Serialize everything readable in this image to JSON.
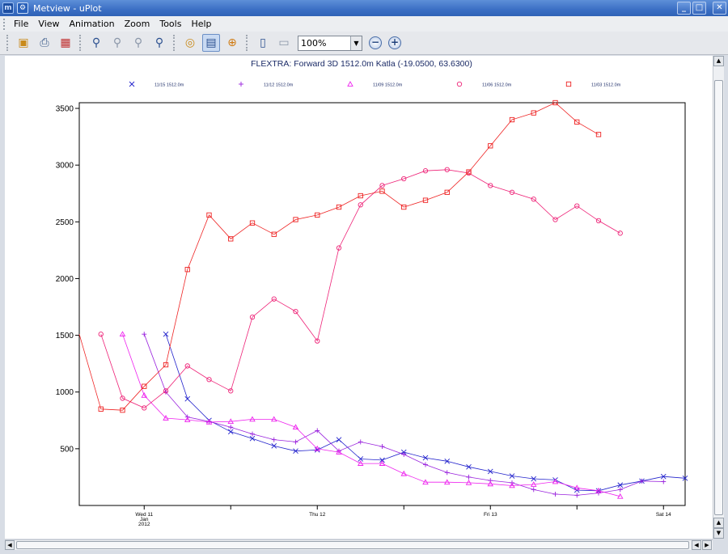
{
  "window": {
    "title": "Metview - uPlot",
    "app_icon": "metview-app-icon",
    "system_icon": "gear-icon"
  },
  "menu": {
    "items": [
      "File",
      "View",
      "Animation",
      "Zoom",
      "Tools",
      "Help"
    ]
  },
  "toolbar": {
    "buttons": [
      {
        "name": "save-icon",
        "glyph": "💾"
      },
      {
        "name": "print-icon",
        "glyph": "🖶"
      },
      {
        "name": "export-icon",
        "glyph": "▦"
      },
      {
        "name": "zoom-in-icon",
        "glyph": "🔍"
      },
      {
        "name": "zoom-out-icon",
        "glyph": "🔍"
      },
      {
        "name": "zoom-reset-icon",
        "glyph": "🔍"
      },
      {
        "name": "zoom-menu-icon",
        "glyph": "🔍"
      },
      {
        "name": "magnify-icon",
        "glyph": "◎"
      },
      {
        "name": "sidebar-toggle-icon",
        "glyph": "▤"
      },
      {
        "name": "cursor-data-icon",
        "glyph": "⊕"
      },
      {
        "name": "panel-left-icon",
        "glyph": "▯"
      },
      {
        "name": "panel-copy-icon",
        "glyph": "▭"
      }
    ],
    "zoom_level": "100%",
    "zoom_out_glyph": "−",
    "zoom_in_glyph": "+"
  },
  "chart_data": {
    "type": "line",
    "title": "FLEXTRA: Forward 3D 1512.0m Katla (-19.0500, 63.6300)",
    "xlabel": "",
    "ylabel": "",
    "x_ticks": [
      {
        "label": "Wed 11",
        "sub1": "Jan",
        "sub2": "2012",
        "t": 24
      },
      {
        "label": "Thu 12",
        "t": 48
      },
      {
        "label": "Fri 13",
        "t": 72
      },
      {
        "label": "Sat 14",
        "t": 96
      }
    ],
    "x_minor_ticks": [
      36,
      60,
      84
    ],
    "xlim": [
      15,
      99
    ],
    "ylim": [
      0,
      3550
    ],
    "y_ticks": [
      500,
      1000,
      1500,
      2000,
      2500,
      3000,
      3500
    ],
    "grid": false,
    "legend_position": "top",
    "series": [
      {
        "name": "11/15 1512.0m",
        "color": "#2222cc",
        "marker": "x",
        "points": [
          [
            27,
            1510
          ],
          [
            30,
            940
          ],
          [
            33,
            750
          ],
          [
            36,
            650
          ],
          [
            39,
            590
          ],
          [
            42,
            525
          ],
          [
            45,
            480
          ],
          [
            48,
            490
          ],
          [
            51,
            580
          ],
          [
            54,
            410
          ],
          [
            57,
            400
          ],
          [
            60,
            470
          ],
          [
            63,
            420
          ],
          [
            66,
            390
          ],
          [
            69,
            340
          ],
          [
            72,
            300
          ],
          [
            75,
            260
          ],
          [
            78,
            235
          ],
          [
            81,
            225
          ],
          [
            84,
            135
          ],
          [
            87,
            130
          ],
          [
            90,
            180
          ],
          [
            93,
            215
          ],
          [
            96,
            255
          ],
          [
            99,
            240
          ]
        ]
      },
      {
        "name": "11/12 1512.0m",
        "color": "#9922dd",
        "marker": "plus",
        "points": [
          [
            24,
            1510
          ],
          [
            27,
            1000
          ],
          [
            30,
            780
          ],
          [
            33,
            740
          ],
          [
            36,
            690
          ],
          [
            39,
            630
          ],
          [
            42,
            580
          ],
          [
            45,
            560
          ],
          [
            48,
            660
          ],
          [
            51,
            480
          ],
          [
            54,
            560
          ],
          [
            57,
            520
          ],
          [
            60,
            450
          ],
          [
            63,
            360
          ],
          [
            66,
            290
          ],
          [
            69,
            250
          ],
          [
            72,
            220
          ],
          [
            75,
            200
          ],
          [
            78,
            140
          ],
          [
            81,
            100
          ],
          [
            84,
            90
          ],
          [
            87,
            110
          ],
          [
            90,
            140
          ],
          [
            93,
            215
          ],
          [
            96,
            210
          ]
        ]
      },
      {
        "name": "11/09 1512.0m",
        "color": "#ee22ee",
        "marker": "triangle",
        "points": [
          [
            21,
            1510
          ],
          [
            24,
            970
          ],
          [
            27,
            770
          ],
          [
            30,
            755
          ],
          [
            33,
            735
          ],
          [
            36,
            740
          ],
          [
            39,
            760
          ],
          [
            42,
            760
          ],
          [
            45,
            690
          ],
          [
            48,
            500
          ],
          [
            51,
            470
          ],
          [
            54,
            370
          ],
          [
            57,
            370
          ],
          [
            60,
            280
          ],
          [
            63,
            205
          ],
          [
            66,
            205
          ],
          [
            69,
            200
          ],
          [
            72,
            190
          ],
          [
            75,
            175
          ],
          [
            78,
            185
          ],
          [
            81,
            210
          ],
          [
            84,
            155
          ],
          [
            87,
            130
          ],
          [
            90,
            80
          ]
        ]
      },
      {
        "name": "11/06 1512.0m",
        "color": "#ee2277",
        "marker": "circle",
        "points": [
          [
            18,
            1510
          ],
          [
            21,
            945
          ],
          [
            24,
            860
          ],
          [
            27,
            1010
          ],
          [
            30,
            1230
          ],
          [
            33,
            1110
          ],
          [
            36,
            1010
          ],
          [
            39,
            1660
          ],
          [
            42,
            1820
          ],
          [
            45,
            1710
          ],
          [
            48,
            1450
          ],
          [
            51,
            2270
          ],
          [
            54,
            2650
          ],
          [
            57,
            2820
          ],
          [
            60,
            2880
          ],
          [
            63,
            2950
          ],
          [
            66,
            2960
          ],
          [
            69,
            2930
          ],
          [
            72,
            2820
          ],
          [
            75,
            2760
          ],
          [
            78,
            2700
          ],
          [
            81,
            2520
          ],
          [
            84,
            2640
          ],
          [
            87,
            2510
          ],
          [
            90,
            2400
          ]
        ]
      },
      {
        "name": "11/03 1512.0m",
        "color": "#ee2222",
        "marker": "square",
        "points": [
          [
            15,
            1510
          ],
          [
            18,
            850
          ],
          [
            21,
            840
          ],
          [
            24,
            1050
          ],
          [
            27,
            1240
          ],
          [
            30,
            2080
          ],
          [
            33,
            2560
          ],
          [
            36,
            2350
          ],
          [
            39,
            2490
          ],
          [
            42,
            2390
          ],
          [
            45,
            2520
          ],
          [
            48,
            2560
          ],
          [
            51,
            2630
          ],
          [
            54,
            2730
          ],
          [
            57,
            2770
          ],
          [
            60,
            2630
          ],
          [
            63,
            2690
          ],
          [
            66,
            2760
          ],
          [
            69,
            2940
          ],
          [
            72,
            3170
          ],
          [
            75,
            3400
          ],
          [
            78,
            3460
          ],
          [
            81,
            3550
          ],
          [
            84,
            3380
          ],
          [
            87,
            3270
          ]
        ]
      }
    ]
  }
}
